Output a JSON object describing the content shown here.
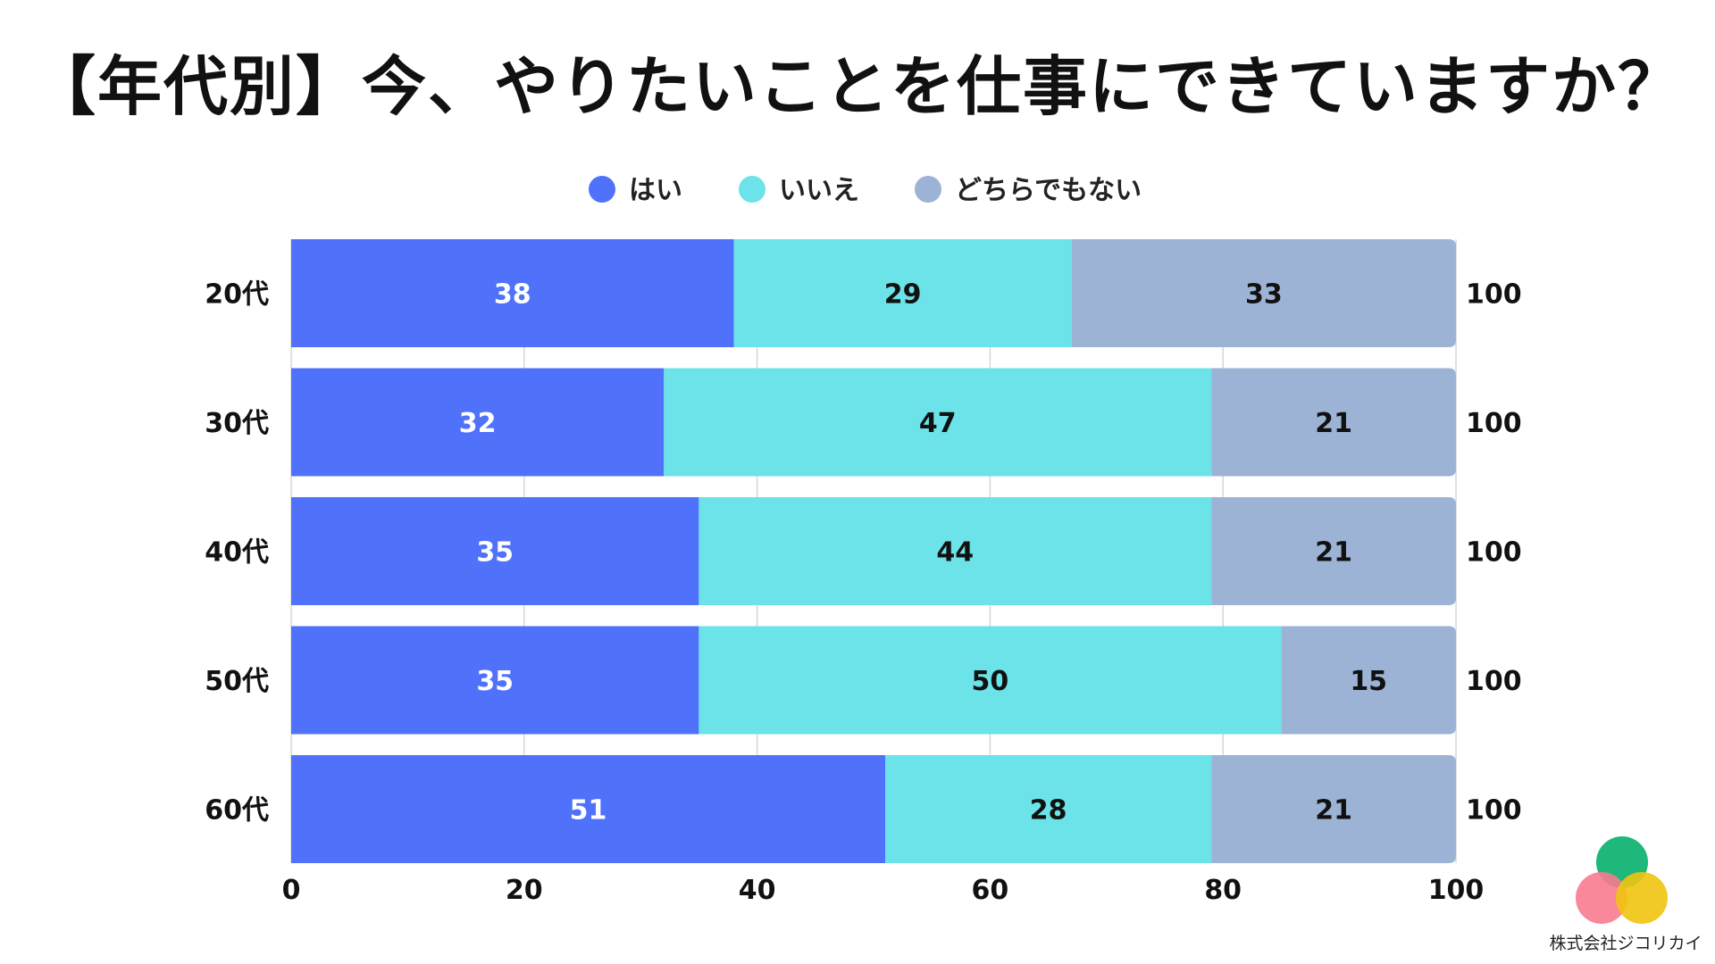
{
  "title": "【年代別】今、やりたいことを仕事にできていますか？",
  "company": "株式会社ジコリカイ",
  "logo_colors": {
    "top": "#1db87a",
    "left": "#f77b8f",
    "right": "#f1c40f"
  },
  "chart_data": {
    "type": "bar",
    "orientation": "horizontal",
    "stacked": true,
    "categories": [
      "20代",
      "30代",
      "40代",
      "50代",
      "60代"
    ],
    "series": [
      {
        "name": "はい",
        "color": "#5072fb",
        "label_color": "#ffffff",
        "values": [
          38,
          32,
          35,
          35,
          51
        ]
      },
      {
        "name": "いいえ",
        "color": "#6be3e8",
        "label_color": "#111111",
        "values": [
          29,
          47,
          44,
          50,
          28
        ]
      },
      {
        "name": "どちらでもない",
        "color": "#9cb3d6",
        "label_color": "#111111",
        "values": [
          33,
          21,
          21,
          15,
          21
        ]
      }
    ],
    "totals": [
      "100",
      "100",
      "100",
      "100",
      "100"
    ],
    "xlim": [
      0,
      100
    ],
    "xticks": [
      0,
      20,
      40,
      60,
      80,
      100
    ],
    "xtick_labels": [
      "0",
      "20",
      "40",
      "60",
      "80",
      "100"
    ],
    "grid": true,
    "legend_position": "top-center"
  }
}
